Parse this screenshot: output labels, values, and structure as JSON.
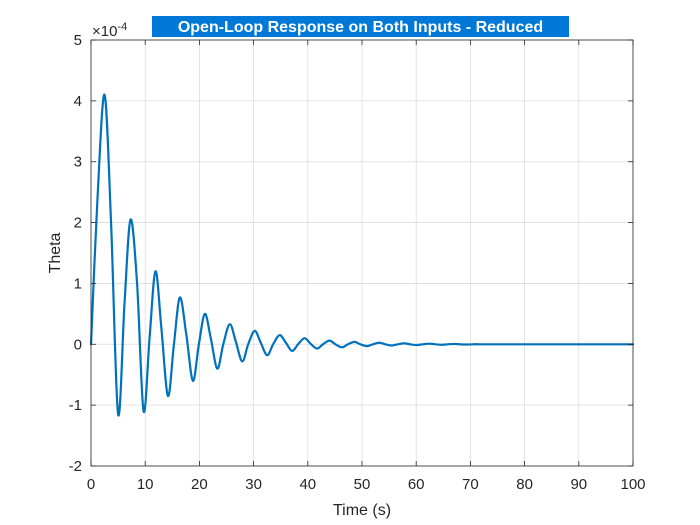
{
  "chart_data": {
    "type": "line",
    "title": "Open-Loop Response on Both Inputs - Reduced",
    "xlabel": "Time (s)",
    "ylabel": "Theta",
    "xlim": [
      0,
      100
    ],
    "ylim": [
      -2,
      5
    ],
    "y_multiplier_base": "×10",
    "y_multiplier_exponent": "-4",
    "xticks": [
      0,
      10,
      20,
      30,
      40,
      50,
      60,
      70,
      80,
      90,
      100
    ],
    "xtick_labels": [
      "0",
      "10",
      "20",
      "30",
      "40",
      "50",
      "60",
      "70",
      "80",
      "90",
      "100"
    ],
    "yticks": [
      -2,
      -1,
      0,
      1,
      2,
      3,
      4,
      5
    ],
    "ytick_labels": [
      "-2",
      "-1",
      "0",
      "1",
      "2",
      "3",
      "4",
      "5"
    ],
    "grid": true,
    "series": [
      {
        "color": "#0072BD",
        "x": [
          0,
          1.2,
          2.5,
          3.7,
          5.0,
          6.2,
          7.3,
          8.5,
          9.7,
          10.8,
          11.9,
          13.0,
          14.2,
          15.3,
          16.4,
          17.6,
          18.8,
          19.9,
          21.0,
          22.1,
          23.3,
          24.4,
          25.6,
          26.7,
          27.9,
          29.0,
          30.2,
          31.3,
          32.5,
          33.6,
          34.8,
          36.0,
          37.1,
          38.2,
          39.4,
          40.5,
          41.7,
          42.8,
          44.0,
          45.1,
          46.3,
          47.4,
          48.6,
          49.7,
          50.9,
          52.0,
          53.2,
          54.3,
          55.5,
          56.6,
          57.8,
          58.9,
          60.1,
          61.2,
          62.4,
          63.5,
          64.7,
          65.8,
          67.0,
          68.1,
          69.3,
          70.4,
          72.0,
          75.0,
          80.0,
          85.0,
          90.0,
          95.0,
          100.0
        ],
        "y": [
          0,
          2.4,
          4.1,
          2.0,
          -1.15,
          0.7,
          2.05,
          1.0,
          -1.1,
          0.1,
          1.2,
          0.25,
          -0.85,
          0.0,
          0.77,
          0.15,
          -0.6,
          0.0,
          0.5,
          0.1,
          -0.4,
          0.0,
          0.33,
          0.05,
          -0.28,
          0.0,
          0.22,
          0.03,
          -0.18,
          0.0,
          0.15,
          0.02,
          -0.11,
          0.0,
          0.1,
          0.01,
          -0.07,
          0.0,
          0.06,
          0.0,
          -0.05,
          0.0,
          0.04,
          0.0,
          -0.03,
          0.0,
          0.025,
          0.0,
          -0.02,
          0.0,
          0.015,
          0.0,
          -0.012,
          0.0,
          0.01,
          0.0,
          -0.008,
          0.0,
          0.006,
          0.0,
          -0.004,
          0.0,
          0.0,
          0.0,
          0.0,
          0.0,
          0.0,
          0.0,
          0.0
        ]
      }
    ]
  }
}
